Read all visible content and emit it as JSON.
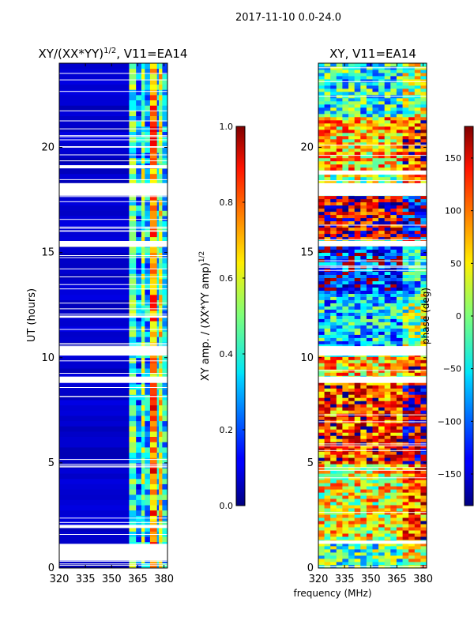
{
  "figure": {
    "suptitle": "2017-11-10 0.0-24.0",
    "shared_xlabel": "frequency (MHz)"
  },
  "chart_data": [
    {
      "type": "heatmap",
      "title": "XY/(XX*YY)",
      "title_exponent": "1/2",
      "title_suffix": ", V11=EA14",
      "xlabel": "",
      "ylabel": "UT (hours)",
      "xlim": [
        320,
        382
      ],
      "ylim": [
        0,
        24
      ],
      "xticks": [
        320,
        335,
        350,
        365,
        380
      ],
      "yticks": [
        0,
        5,
        10,
        15,
        20
      ],
      "colorbar": {
        "label": "XY amp. / (XX*YY amp)",
        "label_exponent": "1/2",
        "range": [
          0.0,
          1.0
        ],
        "ticks": [
          "0.0",
          "0.2",
          "0.4",
          "0.6",
          "0.8",
          "1.0"
        ]
      },
      "gaps_hours": [
        [
          0.35,
          1.15
        ],
        [
          17.7,
          18.3
        ],
        [
          15.3,
          15.55
        ],
        [
          10.1,
          10.55
        ],
        [
          8.8,
          9.1
        ],
        [
          1.9,
          2.05
        ],
        [
          11.9,
          12.0
        ],
        [
          19.0,
          19.15
        ]
      ],
      "freq_columns_mhz": [
        {
          "f0": 320,
          "f1": 360,
          "value": 0.05
        },
        {
          "f0": 360,
          "f1": 364,
          "value": 0.45
        },
        {
          "f0": 364,
          "f1": 367,
          "value": 0.25
        },
        {
          "f0": 367,
          "f1": 369,
          "value": 0.5
        },
        {
          "f0": 369,
          "f1": 372,
          "value": 0.3
        },
        {
          "f0": 372,
          "f1": 376,
          "value": 0.75
        },
        {
          "f0": 376,
          "f1": 377,
          "value": 0.35
        },
        {
          "f0": 377,
          "f1": 379,
          "value": 0.6
        },
        {
          "f0": 379,
          "f1": 382,
          "value": 0.35
        }
      ]
    },
    {
      "type": "heatmap",
      "title": "XY, V11=EA14",
      "xlabel": "frequency (MHz)",
      "ylabel": "",
      "xlim": [
        320,
        382
      ],
      "ylim": [
        0,
        24
      ],
      "xticks": [
        320,
        335,
        350,
        365,
        380
      ],
      "yticks": [
        0,
        5,
        10,
        15,
        20
      ],
      "colorbar": {
        "label": "phase (deg)",
        "range": [
          -180,
          180
        ],
        "ticks": [
          "−150",
          "−100",
          "−50",
          "0",
          "50",
          "100",
          "150"
        ]
      },
      "gaps_hours": [
        [
          1.15,
          1.3
        ],
        [
          17.7,
          18.3
        ],
        [
          18.7,
          18.9
        ],
        [
          15.3,
          15.55
        ],
        [
          10.1,
          10.55
        ],
        [
          8.8,
          9.1
        ]
      ],
      "ut_bands": [
        {
          "t0": 0.0,
          "t1": 1.15,
          "phase": -20
        },
        {
          "t0": 1.3,
          "t1": 5.0,
          "phase": 40
        },
        {
          "t0": 5.0,
          "t1": 8.8,
          "phase": 110
        },
        {
          "t0": 9.1,
          "t1": 10.1,
          "phase": 60
        },
        {
          "t0": 10.55,
          "t1": 13.0,
          "phase": -60
        },
        {
          "t0": 13.0,
          "t1": 15.3,
          "phase": -120
        },
        {
          "t0": 15.55,
          "t1": 17.7,
          "phase": 150
        },
        {
          "t0": 18.3,
          "t1": 18.7,
          "phase": 20
        },
        {
          "t0": 18.9,
          "t1": 21.5,
          "phase": 60
        },
        {
          "t0": 21.5,
          "t1": 24.0,
          "phase": -40
        }
      ]
    }
  ]
}
